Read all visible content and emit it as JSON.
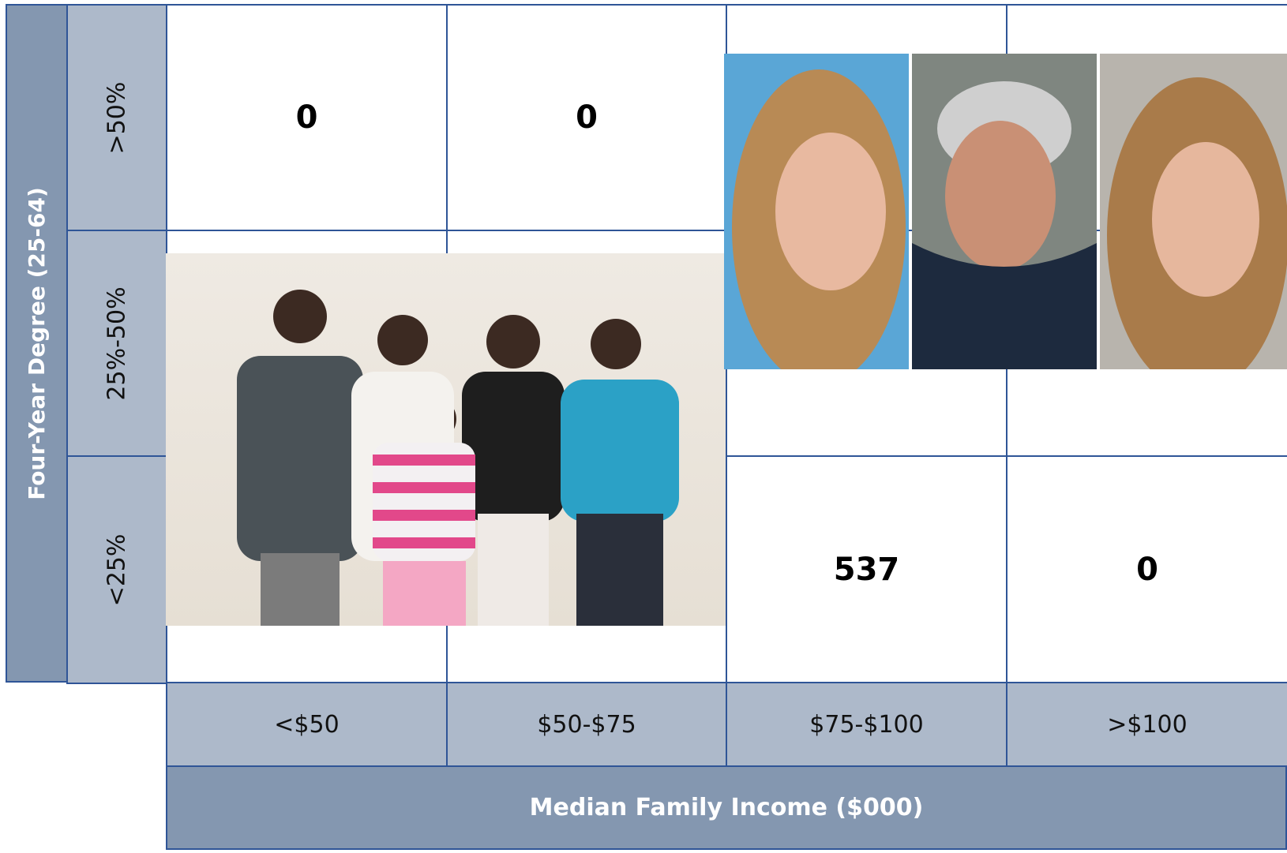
{
  "y_axis": {
    "title": "Four-Year Degree (25-64)"
  },
  "x_axis": {
    "title": "Median Family Income ($000)"
  },
  "columns": [
    "<$50",
    "$50-$75",
    "$75-$100",
    ">$100"
  ],
  "rows": [
    {
      "label": ">50%",
      "values": [
        0,
        0,
        null,
        null
      ]
    },
    {
      "label": "25%-50%",
      "values": [
        null,
        null,
        null,
        null
      ]
    },
    {
      "label": "<25%",
      "values": [
        null,
        null,
        537,
        0
      ]
    }
  ]
}
